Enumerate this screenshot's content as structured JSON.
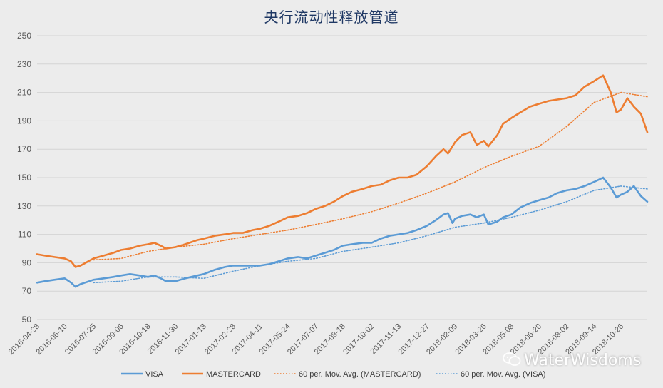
{
  "chart_data": {
    "type": "line",
    "title": "央行流动性释放管道",
    "xlabel": "",
    "ylabel": "",
    "ylim": [
      50,
      250
    ],
    "yticks": [
      50,
      70,
      90,
      110,
      130,
      150,
      170,
      190,
      210,
      230,
      250
    ],
    "x_start": "2016-04-28",
    "x_end": "2018-12-06",
    "xticks": [
      "2016-04-28",
      "2016-06-10",
      "2016-07-25",
      "2016-09-06",
      "2016-10-18",
      "2016-11-30",
      "2017-01-13",
      "2017-02-28",
      "2017-04-11",
      "2017-05-24",
      "2017-07-07",
      "2017-08-18",
      "2017-10-02",
      "2017-11-13",
      "2017-12-27",
      "2018-02-09",
      "2018-03-26",
      "2018-05-08",
      "2018-06-20",
      "2018-08-02",
      "2018-09-14",
      "2018-10-26"
    ],
    "grid": true,
    "legend_position": "bottom",
    "series": [
      {
        "name": "VISA",
        "color": "#5b9bd5",
        "style": "solid",
        "x": [
          "2016-04-28",
          "2016-05-10",
          "2016-05-25",
          "2016-06-10",
          "2016-06-20",
          "2016-06-27",
          "2016-07-05",
          "2016-07-25",
          "2016-08-10",
          "2016-08-25",
          "2016-09-06",
          "2016-09-20",
          "2016-10-05",
          "2016-10-18",
          "2016-10-28",
          "2016-11-07",
          "2016-11-15",
          "2016-11-30",
          "2016-12-15",
          "2017-01-03",
          "2017-01-13",
          "2017-01-30",
          "2017-02-15",
          "2017-02-28",
          "2017-03-15",
          "2017-03-30",
          "2017-04-11",
          "2017-04-25",
          "2017-05-10",
          "2017-05-24",
          "2017-06-09",
          "2017-06-23",
          "2017-07-07",
          "2017-07-21",
          "2017-08-04",
          "2017-08-18",
          "2017-09-01",
          "2017-09-18",
          "2017-10-02",
          "2017-10-16",
          "2017-10-30",
          "2017-11-13",
          "2017-11-27",
          "2017-12-11",
          "2017-12-27",
          "2018-01-10",
          "2018-01-22",
          "2018-01-29",
          "2018-02-05",
          "2018-02-09",
          "2018-02-20",
          "2018-03-05",
          "2018-03-15",
          "2018-03-26",
          "2018-04-02",
          "2018-04-16",
          "2018-04-25",
          "2018-05-08",
          "2018-05-22",
          "2018-06-06",
          "2018-06-20",
          "2018-07-05",
          "2018-07-18",
          "2018-08-02",
          "2018-08-16",
          "2018-08-30",
          "2018-09-14",
          "2018-09-28",
          "2018-10-10",
          "2018-10-19",
          "2018-10-26",
          "2018-11-05",
          "2018-11-15",
          "2018-11-26",
          "2018-12-06"
        ],
        "values": [
          76,
          77,
          78,
          79,
          76,
          73,
          75,
          78,
          79,
          80,
          81,
          82,
          81,
          80,
          81,
          79,
          77,
          77,
          79,
          81,
          82,
          85,
          87,
          88,
          88,
          88,
          88,
          89,
          91,
          93,
          94,
          93,
          95,
          97,
          99,
          102,
          103,
          104,
          104,
          107,
          109,
          110,
          111,
          113,
          116,
          120,
          124,
          125,
          118,
          121,
          123,
          124,
          122,
          124,
          117,
          119,
          122,
          124,
          129,
          132,
          134,
          136,
          139,
          141,
          142,
          144,
          147,
          150,
          143,
          136,
          138,
          140,
          144,
          137,
          133
        ]
      },
      {
        "name": "MASTERCARD",
        "color": "#ed7d31",
        "style": "solid",
        "x": [
          "2016-04-28",
          "2016-05-10",
          "2016-05-25",
          "2016-06-10",
          "2016-06-20",
          "2016-06-27",
          "2016-07-05",
          "2016-07-25",
          "2016-08-10",
          "2016-08-25",
          "2016-09-06",
          "2016-09-20",
          "2016-10-05",
          "2016-10-18",
          "2016-10-28",
          "2016-11-07",
          "2016-11-15",
          "2016-11-30",
          "2016-12-15",
          "2017-01-03",
          "2017-01-13",
          "2017-01-30",
          "2017-02-15",
          "2017-02-28",
          "2017-03-15",
          "2017-03-30",
          "2017-04-11",
          "2017-04-25",
          "2017-05-10",
          "2017-05-24",
          "2017-06-09",
          "2017-06-23",
          "2017-07-07",
          "2017-07-21",
          "2017-08-04",
          "2017-08-18",
          "2017-09-01",
          "2017-09-18",
          "2017-10-02",
          "2017-10-16",
          "2017-10-30",
          "2017-11-13",
          "2017-11-27",
          "2017-12-11",
          "2017-12-27",
          "2018-01-10",
          "2018-01-22",
          "2018-01-29",
          "2018-02-05",
          "2018-02-09",
          "2018-02-20",
          "2018-03-05",
          "2018-03-15",
          "2018-03-26",
          "2018-04-02",
          "2018-04-16",
          "2018-04-25",
          "2018-05-08",
          "2018-05-22",
          "2018-06-06",
          "2018-06-20",
          "2018-07-05",
          "2018-07-18",
          "2018-08-02",
          "2018-08-16",
          "2018-08-30",
          "2018-09-14",
          "2018-09-28",
          "2018-10-10",
          "2018-10-19",
          "2018-10-26",
          "2018-11-05",
          "2018-11-15",
          "2018-11-26",
          "2018-12-06"
        ],
        "values": [
          96,
          95,
          94,
          93,
          91,
          87,
          88,
          93,
          95,
          97,
          99,
          100,
          102,
          103,
          104,
          102,
          100,
          101,
          103,
          106,
          107,
          109,
          110,
          111,
          111,
          113,
          114,
          116,
          119,
          122,
          123,
          125,
          128,
          130,
          133,
          137,
          140,
          142,
          144,
          145,
          148,
          150,
          150,
          152,
          158,
          165,
          170,
          167,
          172,
          175,
          180,
          182,
          173,
          176,
          172,
          180,
          188,
          192,
          196,
          200,
          202,
          204,
          205,
          206,
          208,
          214,
          218,
          222,
          210,
          196,
          198,
          206,
          200,
          195,
          182
        ]
      },
      {
        "name": "60 per. Mov. Avg. (MASTERCARD)",
        "color": "#ed7d31",
        "style": "dotted",
        "x": [
          "2016-07-25",
          "2016-09-06",
          "2016-10-18",
          "2016-11-30",
          "2017-01-13",
          "2017-02-28",
          "2017-04-11",
          "2017-05-24",
          "2017-07-07",
          "2017-08-18",
          "2017-10-02",
          "2017-11-13",
          "2017-12-27",
          "2018-02-09",
          "2018-03-26",
          "2018-05-08",
          "2018-06-20",
          "2018-08-02",
          "2018-09-14",
          "2018-10-26",
          "2018-12-06"
        ],
        "values": [
          92,
          93,
          98,
          101,
          103,
          107,
          110,
          113,
          117,
          121,
          126,
          132,
          139,
          147,
          157,
          165,
          172,
          186,
          203,
          210,
          207
        ]
      },
      {
        "name": "60 per. Mov. Avg. (VISA)",
        "color": "#5b9bd5",
        "style": "dotted",
        "x": [
          "2016-07-25",
          "2016-09-06",
          "2016-10-18",
          "2016-11-30",
          "2017-01-13",
          "2017-02-28",
          "2017-04-11",
          "2017-05-24",
          "2017-07-07",
          "2017-08-18",
          "2017-10-02",
          "2017-11-13",
          "2017-12-27",
          "2018-02-09",
          "2018-03-26",
          "2018-05-08",
          "2018-06-20",
          "2018-08-02",
          "2018-09-14",
          "2018-10-26",
          "2018-12-06"
        ],
        "values": [
          76,
          77,
          80,
          80,
          79,
          84,
          88,
          91,
          93,
          98,
          101,
          104,
          109,
          115,
          118,
          122,
          127,
          133,
          141,
          144,
          142
        ]
      }
    ]
  },
  "watermark": {
    "text": "WaterWisdoms",
    "icon": "wechat-icon"
  }
}
